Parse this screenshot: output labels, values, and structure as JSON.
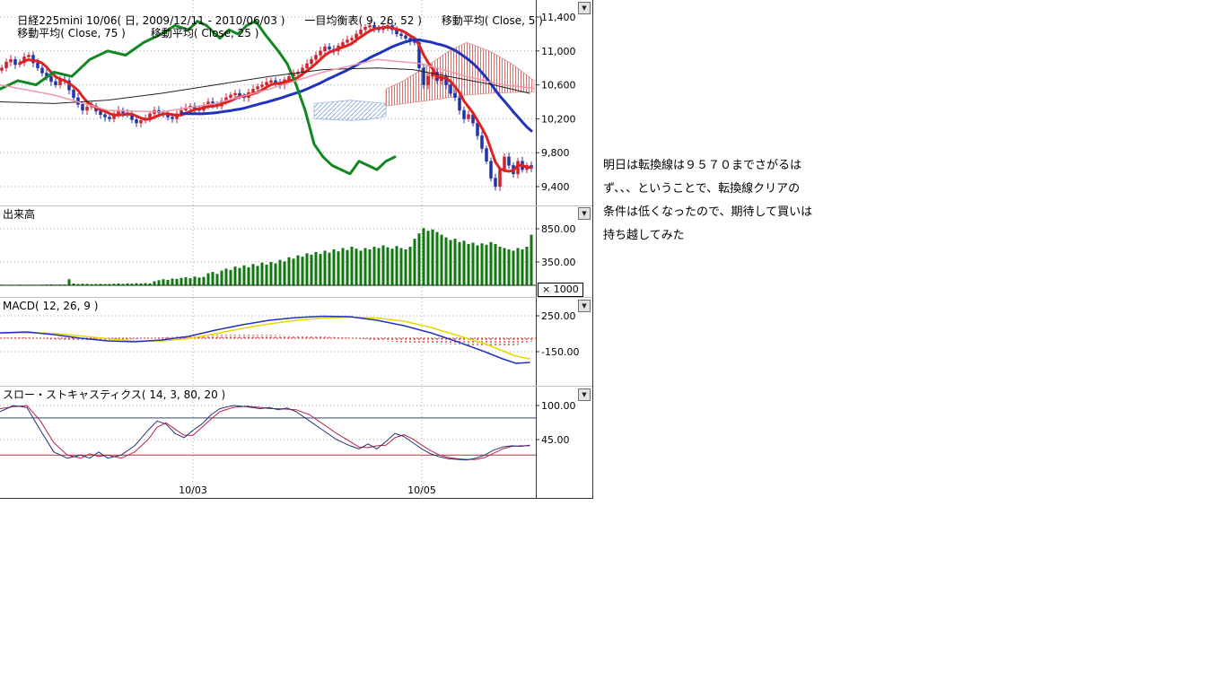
{
  "header": {
    "title": "日経225mini 10/06( 日, 2009/12/11 - 2010/06/03 )",
    "ichimoku_label": "一目均衡表( 9, 26, 52 )",
    "ma5_label": "移動平均( Close, 5 )",
    "ma75_label": "移動平均( Close, 75 )",
    "ma25_label": "移動平均( Close, 25 )"
  },
  "panels": {
    "volume_label": "出来高",
    "volume_unit": "× 1000",
    "macd_label": "MACD( 12, 26, 9 )",
    "stoch_label": "スロー・ストキャスティクス( 14, 3, 80, 20 )"
  },
  "annotation": {
    "lines": [
      "明日は転換線は９５７０までさがるは",
      "ず、、、ということで、転換線クリアの",
      "条件は低くなったので、期待して買いは",
      "持ち越してみた"
    ]
  },
  "colors": {
    "candle_up": "#cc2233",
    "candle_down": "#2233aa",
    "ma5": "#dd2222",
    "ma25": "#2233bb",
    "ma75": "#222222",
    "chikou": "#118822",
    "tenkan": "#ee99aa",
    "volume_bar": "#117711",
    "macd_line": "#2233bb",
    "macd_signal": "#e6d800",
    "macd_hist": "#cc2222",
    "stoch_k": "#223377",
    "stoch_d": "#bb2244",
    "level80": "#334477",
    "level20": "#bb3333"
  },
  "chart_data": [
    {
      "type": "candlestick",
      "title": "日経225mini 10/06( 日, 2009/12/11 - 2010/06/03 )",
      "indicators": [
        "一目均衡表( 9, 26, 52 )",
        "移動平均( Close, 5 )",
        "移動平均( Close, 75 )",
        "移動平均( Close, 25 )"
      ],
      "x_ticks": [
        "10/03",
        "10/05"
      ],
      "y_ticks": [
        11400,
        11000,
        10600,
        10200,
        9800,
        9400
      ],
      "y_tick_labels": [
        "11,400",
        "11,000",
        "10,600",
        "10,200",
        "9,800",
        "9,400"
      ],
      "closes": [
        10800,
        10870,
        10900,
        10840,
        10860,
        10930,
        10950,
        10860,
        10800,
        10740,
        10700,
        10640,
        10600,
        10660,
        10650,
        10540,
        10450,
        10370,
        10300,
        10340,
        10350,
        10290,
        10250,
        10220,
        10200,
        10260,
        10300,
        10270,
        10250,
        10190,
        10150,
        10180,
        10200,
        10260,
        10300,
        10270,
        10250,
        10220,
        10200,
        10260,
        10300,
        10330,
        10350,
        10310,
        10300,
        10360,
        10400,
        10370,
        10350,
        10410,
        10450,
        10480,
        10500,
        10470,
        10450,
        10510,
        10550,
        10580,
        10600,
        10630,
        10650,
        10620,
        10600,
        10660,
        10700,
        10730,
        10750,
        10800,
        10850,
        10900,
        10950,
        11000,
        11050,
        11020,
        11000,
        11060,
        11100,
        11130,
        11150,
        11200,
        11250,
        11280,
        11300,
        11270,
        11250,
        11280,
        11300,
        11250,
        11200,
        11180,
        11150,
        11120,
        11100,
        10800,
        10600,
        10700,
        10750,
        10650,
        10700,
        10600,
        10500,
        10450,
        10300,
        10200,
        10250,
        10150,
        10000,
        9850,
        9700,
        9500,
        9400,
        9600,
        9750,
        9650,
        9550,
        9700,
        9600,
        9650,
        9620
      ],
      "series": [
        {
          "name": "chikou_span",
          "color": "#118822",
          "width": 3,
          "x": [
            0,
            20,
            40,
            60,
            80,
            100,
            120,
            140,
            160,
            180,
            195,
            210,
            220,
            230,
            245,
            255,
            265,
            275,
            285,
            295,
            310,
            320,
            330,
            340,
            345,
            350,
            360,
            370,
            380,
            390,
            400,
            410,
            420,
            430,
            440
          ],
          "v": [
            10550,
            10650,
            10600,
            10750,
            10700,
            10900,
            11000,
            10950,
            11100,
            11200,
            11300,
            11250,
            11350,
            11300,
            11150,
            11250,
            11200,
            11300,
            11350,
            11200,
            11000,
            10850,
            10600,
            10300,
            10100,
            9900,
            9750,
            9650,
            9600,
            9550,
            9700,
            9650,
            9600,
            9700,
            9750
          ]
        },
        {
          "name": "ma75",
          "color": "#222222",
          "width": 1,
          "x": [
            0,
            60,
            120,
            180,
            240,
            300,
            360,
            420,
            460,
            500,
            550,
            590
          ],
          "v": [
            10400,
            10380,
            10420,
            10500,
            10600,
            10700,
            10780,
            10800,
            10780,
            10700,
            10600,
            10500
          ]
        },
        {
          "name": "tenkan",
          "color": "#ee99aa",
          "width": 1.5,
          "x": [
            0,
            60,
            120,
            180,
            240,
            300,
            360,
            420,
            470,
            520,
            560,
            595
          ],
          "v": [
            10600,
            10480,
            10300,
            10280,
            10380,
            10550,
            10750,
            10900,
            10850,
            10700,
            10600,
            10560
          ]
        }
      ],
      "derived": {
        "ma5": {
          "period": 5,
          "color": "#dd2222",
          "width": 3,
          "start": 4
        },
        "ma25": {
          "period": 25,
          "color": "#2233bb",
          "width": 3,
          "start": 40
        }
      },
      "clouds": [
        {
          "name": "cloud-blue",
          "pattern": "blue",
          "x": [
            350,
            370,
            390,
            410,
            430
          ],
          "top": [
            10380,
            10400,
            10420,
            10400,
            10380
          ],
          "bottom": [
            10200,
            10190,
            10180,
            10190,
            10230
          ]
        },
        {
          "name": "cloud-red",
          "pattern": "red",
          "x": [
            430,
            450,
            480,
            500,
            520,
            545,
            570,
            595
          ],
          "top": [
            10550,
            10650,
            10850,
            11000,
            11100,
            11000,
            10850,
            10650
          ],
          "bottom": [
            10350,
            10380,
            10420,
            10450,
            10480,
            10500,
            10510,
            10520
          ]
        }
      ]
    },
    {
      "type": "bar",
      "title": "出来高",
      "unit": "× 1000",
      "y_ticks": [
        850,
        350
      ],
      "y_tick_labels": [
        "850.00",
        "350.00"
      ],
      "values": [
        8,
        6,
        7,
        5,
        9,
        6,
        8,
        7,
        6,
        8,
        10,
        12,
        9,
        11,
        10,
        90,
        25,
        18,
        22,
        20,
        15,
        18,
        20,
        17,
        19,
        22,
        25,
        20,
        28,
        24,
        30,
        26,
        32,
        28,
        60,
        75,
        90,
        80,
        100,
        95,
        110,
        120,
        105,
        130,
        115,
        125,
        180,
        200,
        170,
        220,
        250,
        230,
        280,
        260,
        300,
        270,
        320,
        290,
        340,
        310,
        350,
        330,
        380,
        360,
        420,
        400,
        450,
        430,
        480,
        460,
        500,
        470,
        520,
        490,
        540,
        510,
        560,
        530,
        580,
        550,
        520,
        560,
        540,
        580,
        560,
        600,
        570,
        550,
        590,
        560,
        540,
        580,
        700,
        780,
        860,
        820,
        840,
        800,
        760,
        720,
        680,
        700,
        650,
        670,
        620,
        640,
        600,
        630,
        610,
        650,
        620,
        580,
        560,
        540,
        520,
        560,
        540,
        580,
        760
      ]
    },
    {
      "type": "line",
      "title": "MACD( 12, 26, 9 )",
      "y_ticks": [
        250,
        -150
      ],
      "y_tick_labels": [
        "250.00",
        "-150.00"
      ],
      "x": [
        0,
        30,
        60,
        90,
        120,
        150,
        180,
        210,
        240,
        270,
        300,
        330,
        360,
        390,
        420,
        450,
        480,
        510,
        540,
        560,
        575,
        590
      ],
      "macd": [
        60,
        70,
        40,
        0,
        -30,
        -40,
        -20,
        20,
        90,
        150,
        200,
        230,
        245,
        240,
        200,
        140,
        60,
        -40,
        -150,
        -230,
        -280,
        -270
      ],
      "signal": [
        55,
        60,
        55,
        25,
        -5,
        -30,
        -30,
        -5,
        50,
        110,
        160,
        200,
        225,
        235,
        225,
        190,
        120,
        30,
        -60,
        -140,
        -200,
        -230
      ]
    },
    {
      "type": "line",
      "title": "スロー・ストキャスティクス( 14, 3, 80, 20 )",
      "y_ticks": [
        100,
        45
      ],
      "y_tick_labels": [
        "100.00",
        "45.00"
      ],
      "levels": [
        80,
        20
      ],
      "x": [
        0,
        15,
        30,
        45,
        60,
        75,
        90,
        100,
        110,
        120,
        135,
        150,
        165,
        175,
        185,
        195,
        205,
        215,
        225,
        235,
        245,
        260,
        275,
        290,
        300,
        310,
        320,
        330,
        345,
        360,
        375,
        390,
        400,
        410,
        420,
        430,
        440,
        450,
        460,
        470,
        480,
        490,
        500,
        510,
        520,
        530,
        540,
        550,
        560,
        570,
        580,
        590
      ],
      "k": [
        90,
        100,
        97,
        60,
        25,
        15,
        20,
        15,
        25,
        15,
        20,
        35,
        60,
        75,
        70,
        55,
        48,
        60,
        70,
        85,
        95,
        100,
        98,
        95,
        97,
        93,
        96,
        90,
        75,
        60,
        45,
        35,
        30,
        38,
        30,
        42,
        55,
        50,
        40,
        30,
        22,
        17,
        14,
        13,
        12,
        15,
        20,
        28,
        33,
        35,
        34,
        36
      ],
      "d": [
        95,
        98,
        100,
        75,
        40,
        20,
        15,
        22,
        18,
        20,
        15,
        25,
        45,
        65,
        72,
        62,
        52,
        52,
        65,
        78,
        90,
        97,
        99,
        97,
        95,
        95,
        94,
        93,
        85,
        70,
        55,
        42,
        33,
        32,
        35,
        36,
        48,
        53,
        46,
        36,
        27,
        20,
        16,
        14,
        13,
        13,
        16,
        23,
        30,
        34,
        35,
        35
      ]
    }
  ]
}
